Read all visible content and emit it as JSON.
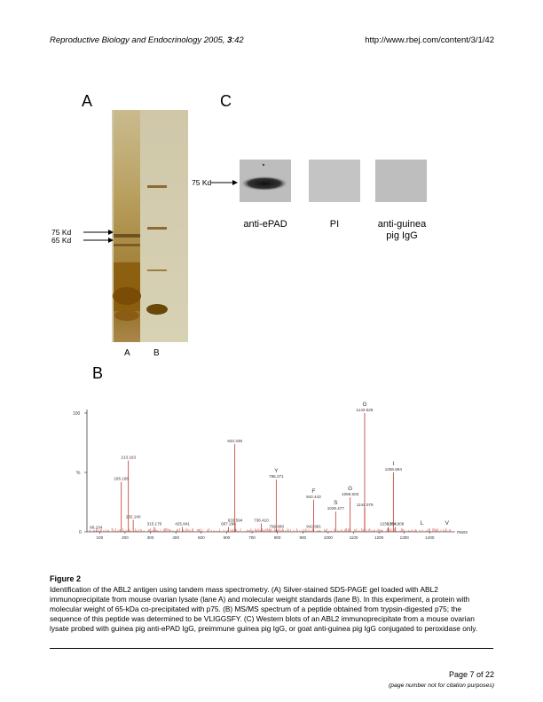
{
  "header": {
    "journal": "Reproductive Biology and Endocrinology",
    "year": "2005,",
    "volume": "3",
    "article": ":42",
    "url": "http://www.rbej.com/content/3/1/42"
  },
  "figure": {
    "panel_a": {
      "letter": "A",
      "marker_75": "75 Kd",
      "marker_65": "65 Kd",
      "lane_a": "A",
      "lane_b": "B"
    },
    "panel_b": {
      "letter": "B",
      "y_tick_top": "100",
      "y_tick_pct": "%",
      "y_tick_zero": "0",
      "x_axis_label": "mass",
      "x_ticks": [
        "100",
        "200",
        "300",
        "400",
        "500",
        "600",
        "700",
        "800",
        "900",
        "1000",
        "1100",
        "1200",
        "1300",
        "1400"
      ],
      "peaks": [
        {
          "mz": 86.104,
          "label": "86.104",
          "intensity": 1
        },
        {
          "mz": 185.166,
          "label": "185.166",
          "intensity": 42
        },
        {
          "mz": 213.163,
          "label": "213.163",
          "intensity": 60
        },
        {
          "mz": 232.14,
          "label": "232.140",
          "intensity": 10
        },
        {
          "mz": 315.176,
          "label": "315.176",
          "intensity": 4
        },
        {
          "mz": 425.841,
          "label": "425.841",
          "intensity": 4
        },
        {
          "mz": 607.298,
          "label": "607.298",
          "intensity": 4
        },
        {
          "mz": 632.339,
          "label": "632.339",
          "intensity": 74
        },
        {
          "mz": 633.594,
          "label": "633.594",
          "intensity": 7
        },
        {
          "mz": 736.41,
          "label": "736.410",
          "intensity": 7
        },
        {
          "mz": 795.371,
          "label": "795.371",
          "intensity": 44
        },
        {
          "mz": 796.68,
          "label": "796.680",
          "intensity": 2
        },
        {
          "mz": 942.443,
          "label": "942.443",
          "intensity": 27
        },
        {
          "mz": 942.981,
          "label": "942.981",
          "intensity": 2
        },
        {
          "mz": 1029.477,
          "label": "1029.477",
          "intensity": 17
        },
        {
          "mz": 1086.503,
          "label": "1086.503",
          "intensity": 29
        },
        {
          "mz": 1143.528,
          "label": "1143.528",
          "intensity": 100
        },
        {
          "mz": 1144.079,
          "label": "1144.079",
          "intensity": 20
        },
        {
          "mz": 1236.591,
          "label": "1236.591",
          "intensity": 4
        },
        {
          "mz": 1256.594,
          "label": "1256.594",
          "intensity": 50
        },
        {
          "mz": 1264.908,
          "label": "1264.908",
          "intensity": 4
        }
      ],
      "ions": [
        {
          "letter": "Y",
          "mz": 795.371
        },
        {
          "letter": "F",
          "mz": 942.443
        },
        {
          "letter": "S",
          "mz": 1029.477
        },
        {
          "letter": "G",
          "mz": 1086.503
        },
        {
          "letter": "G",
          "mz": 1143.528
        },
        {
          "letter": "I",
          "mz": 1256.594
        },
        {
          "letter": "L",
          "mz": 1369.0
        },
        {
          "letter": "V",
          "mz": 1468.0
        }
      ]
    },
    "panel_c": {
      "letter": "C",
      "marker_75": "75 Kd",
      "blots": [
        {
          "label_line1": "anti-ePAD",
          "label_line2": ""
        },
        {
          "label_line1": "PI",
          "label_line2": ""
        },
        {
          "label_line1": "anti-guinea",
          "label_line2": "pig IgG"
        }
      ]
    }
  },
  "caption": {
    "title": "Figure 2",
    "text": "Identification of the ABL2 antigen using tandem mass spectrometry. (A) Silver-stained SDS-PAGE gel loaded with ABL2 immunoprecipitate from mouse ovarian lysate (lane A) and molecular weight standards (lane B). In this experiment, a protein with molecular weight of 65-kDa co-precipitated with p75. (B) MS/MS spectrum of a peptide obtained from trypsin-digested p75; the sequence of this peptide was determined to be VLIGGSFY. (C) Western blots of an ABL2 immunoprecipitate from a mouse ovarian lysate probed with guinea pig anti-ePAD IgG, preimmune guinea pig IgG, or goat anti-guinea pig IgG conjugated to peroxidase only."
  },
  "footer": {
    "page": "Page 7 of 22",
    "note": "(page number not for citation purposes)"
  },
  "chart_data": {
    "type": "bar",
    "x": [
      86.104,
      185.166,
      213.163,
      232.14,
      315.176,
      425.841,
      607.298,
      632.339,
      633.594,
      736.41,
      795.371,
      796.68,
      942.443,
      942.981,
      1029.477,
      1086.503,
      1143.528,
      1144.079,
      1236.591,
      1256.594,
      1264.908
    ],
    "values": [
      1,
      42,
      60,
      10,
      4,
      4,
      4,
      74,
      7,
      7,
      44,
      2,
      27,
      2,
      17,
      29,
      100,
      20,
      4,
      50,
      4
    ],
    "title": "",
    "xlabel": "mass",
    "ylabel": "%",
    "xlim": [
      50,
      1500
    ],
    "ylim": [
      0,
      100
    ]
  }
}
